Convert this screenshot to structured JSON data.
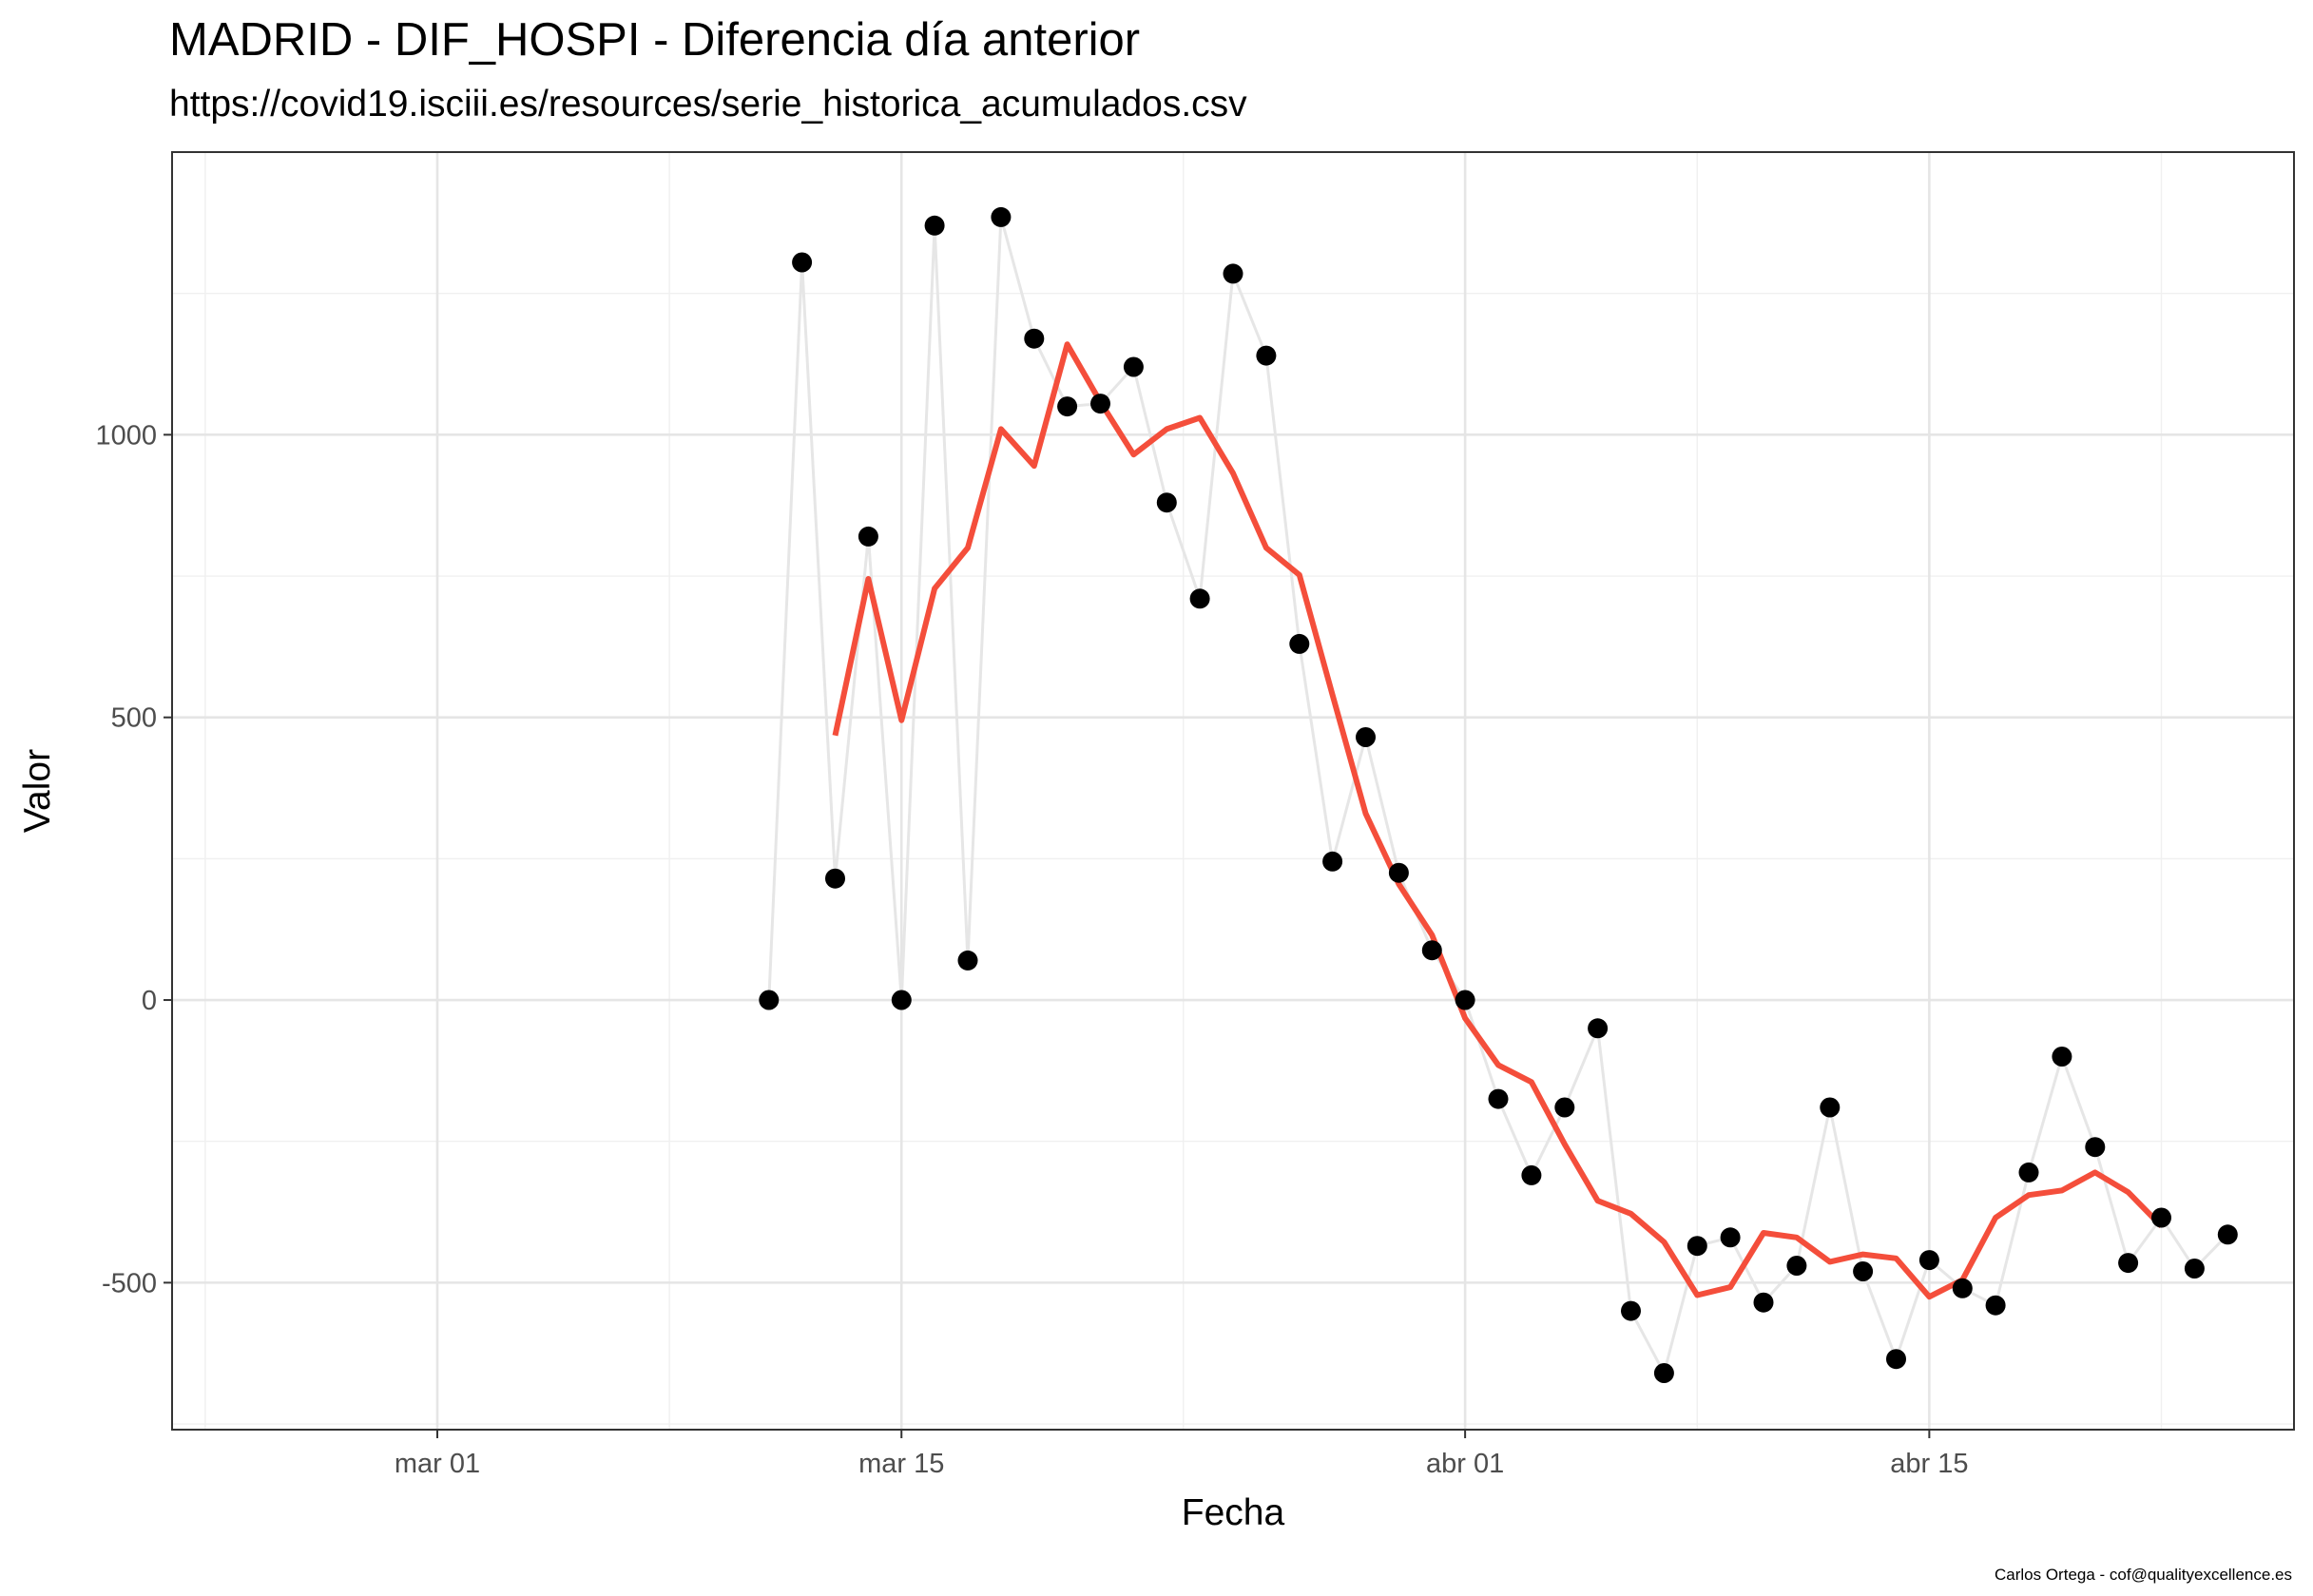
{
  "title": "MADRID - DIF_HOSPI - Diferencia día anterior",
  "subtitle": "https://covid19.isciii.es/resources/serie_historica_acumulados.csv",
  "caption": "Carlos Ortega - cof@qualityexcellence.es",
  "colors": {
    "points": "#000000",
    "raw_line": "#e6e6e6",
    "smooth_line": "#f44e3b",
    "grid_major": "#e5e5e5",
    "grid_minor": "#f0f0f0",
    "panel_border": "#333333"
  },
  "chart_data": {
    "type": "line",
    "title": "MADRID - DIF_HOSPI - Diferencia día anterior",
    "subtitle": "https://covid19.isciii.es/resources/serie_historica_acumulados.csv",
    "xlabel": "Fecha",
    "ylabel": "Valor",
    "xlim": [
      "2020-02-22",
      "2020-04-26"
    ],
    "ylim": [
      -760,
      1500
    ],
    "x_ticks": [
      {
        "date": "2020-03-01",
        "label": "mar 01"
      },
      {
        "date": "2020-03-15",
        "label": "mar 15"
      },
      {
        "date": "2020-04-01",
        "label": "abr 01"
      },
      {
        "date": "2020-04-15",
        "label": "abr 15"
      }
    ],
    "y_ticks": [
      {
        "value": -500,
        "label": "-500"
      },
      {
        "value": 0,
        "label": "0"
      },
      {
        "value": 500,
        "label": "500"
      },
      {
        "value": 1000,
        "label": "1000"
      }
    ],
    "grid": true,
    "series": [
      {
        "role": "daily-points",
        "x": [
          "2020-03-11",
          "2020-03-12",
          "2020-03-13",
          "2020-03-14",
          "2020-03-15",
          "2020-03-16",
          "2020-03-17",
          "2020-03-18",
          "2020-03-19",
          "2020-03-20",
          "2020-03-21",
          "2020-03-22",
          "2020-03-23",
          "2020-03-24",
          "2020-03-25",
          "2020-03-26",
          "2020-03-27",
          "2020-03-28",
          "2020-03-29",
          "2020-03-30",
          "2020-03-31",
          "2020-04-01",
          "2020-04-02",
          "2020-04-03",
          "2020-04-04",
          "2020-04-05",
          "2020-04-06",
          "2020-04-07",
          "2020-04-08",
          "2020-04-09",
          "2020-04-10",
          "2020-04-11",
          "2020-04-12",
          "2020-04-13",
          "2020-04-14",
          "2020-04-15",
          "2020-04-16",
          "2020-04-17",
          "2020-04-18",
          "2020-04-19",
          "2020-04-20",
          "2020-04-21",
          "2020-04-22",
          "2020-04-23",
          "2020-04-24"
        ],
        "values": [
          0,
          1305,
          215,
          820,
          0,
          1370,
          70,
          1385,
          1170,
          1050,
          1055,
          1120,
          880,
          710,
          1285,
          1140,
          630,
          245,
          465,
          225,
          88,
          0,
          -175,
          -310,
          -190,
          -50,
          -550,
          -660,
          -435,
          -420,
          -535,
          -470,
          -190,
          -480,
          -635,
          -460,
          -510,
          -540,
          -305,
          -100,
          -260,
          -465,
          -385,
          -475,
          -415
        ]
      },
      {
        "role": "smoothed-line",
        "x": [
          "2020-03-13",
          "2020-03-14",
          "2020-03-15",
          "2020-03-16",
          "2020-03-17",
          "2020-03-18",
          "2020-03-19",
          "2020-03-20",
          "2020-03-21",
          "2020-03-22",
          "2020-03-23",
          "2020-03-24",
          "2020-03-25",
          "2020-03-26",
          "2020-03-27",
          "2020-03-28",
          "2020-03-29",
          "2020-03-30",
          "2020-03-31",
          "2020-04-01",
          "2020-04-02",
          "2020-04-03",
          "2020-04-04",
          "2020-04-05",
          "2020-04-06",
          "2020-04-07",
          "2020-04-08",
          "2020-04-09",
          "2020-04-10",
          "2020-04-11",
          "2020-04-12",
          "2020-04-13",
          "2020-04-14",
          "2020-04-15",
          "2020-04-16",
          "2020-04-17",
          "2020-04-18",
          "2020-04-19",
          "2020-04-20",
          "2020-04-21",
          "2020-04-22"
        ],
        "values": [
          468,
          745,
          495,
          728,
          800,
          1010,
          945,
          1160,
          1058,
          965,
          1010,
          1030,
          932,
          800,
          752,
          540,
          330,
          205,
          115,
          -32,
          -115,
          -145,
          -255,
          -355,
          -378,
          -428,
          -522,
          -508,
          -412,
          -420,
          -463,
          -450,
          -457,
          -525,
          -495,
          -385,
          -345,
          -337,
          -305,
          -340,
          -400
        ]
      }
    ]
  },
  "x_axis": {
    "title": "Fecha",
    "tick_labels": [
      "mar 01",
      "mar 15",
      "abr 01",
      "abr 15"
    ]
  },
  "y_axis": {
    "title": "Valor",
    "tick_labels": [
      "-500",
      "0",
      "500",
      "1000"
    ]
  }
}
